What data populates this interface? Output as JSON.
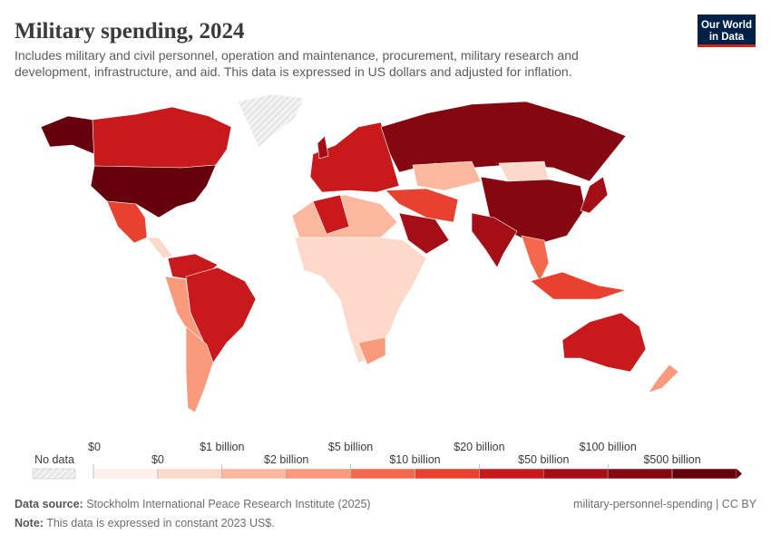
{
  "header": {
    "title": "Military spending, 2024",
    "subtitle_lines": [
      "Includes military and civil personnel, operation and maintenance, procurement, military research and",
      "development, infrastructure, and aid. This data is expressed in US dollars and adjusted for inflation."
    ],
    "logo_lines": [
      "Our World",
      "in Data"
    ]
  },
  "legend": {
    "no_data_label": "No data",
    "labels": [
      "$0",
      "$0",
      "$1 billion",
      "$2 billion",
      "$5 billion",
      "$10 billion",
      "$20 billion",
      "$50 billion",
      "$100 billion",
      "$500 billion"
    ],
    "colors": [
      "#fef0ea",
      "#fcd9ca",
      "#fbb89e",
      "#f99a7d",
      "#f4694e",
      "#e8412f",
      "#c8191d",
      "#a40f17",
      "#850710",
      "#67000d"
    ]
  },
  "footer": {
    "source_label": "Data source:",
    "source": "Stockholm International Peace Research Institute (2025)",
    "slug": "military-personnel-spending | CC BY",
    "note_label": "Note:",
    "note": "This data is expressed in constant 2023 US$."
  }
}
